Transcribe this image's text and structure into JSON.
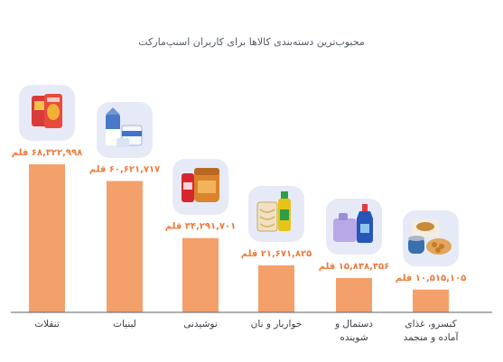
{
  "chart_data": {
    "type": "bar",
    "title": "محبوب‌ترین دسته‌بندی کالاها برای کاربران اسنپ‌مارکت",
    "unit": "قلم",
    "categories": [
      "تنقلات",
      "لبنیات",
      "نوشیدنی",
      "خواربار و نان",
      "دستمال و شوینده",
      "کنسرو، غذای آماده و منجمد"
    ],
    "category_lines": [
      [
        "تنقلات"
      ],
      [
        "لبنیات"
      ],
      [
        "نوشیدنی"
      ],
      [
        "خواربار و نان"
      ],
      [
        "دستمال و",
        "شوینده"
      ],
      [
        "کنسرو، غذای",
        "آماده و منجمد"
      ]
    ],
    "values": [
      68322998,
      60621717,
      34291701,
      21671825,
      15838356,
      10515105
    ],
    "value_labels": [
      "۶۸,۳۲۲,۹۹۸ قلم",
      "۶۰,۶۲۱,۷۱۷ قلم",
      "۳۴,۲۹۱,۷۰۱ قلم",
      "۲۱,۶۷۱,۸۲۵ قلم",
      "۱۵,۸۳۸,۳۵۶ قلم",
      "۱۰,۵۱۵,۱۰۵ قلم"
    ],
    "icons": [
      "chips-icon",
      "milk-icon",
      "beverage-icon",
      "pasta-oil-icon",
      "detergent-icon",
      "canned-food-icon"
    ],
    "ylim": [
      0,
      100000000
    ],
    "grid": false,
    "legend": "none"
  },
  "colors": {
    "bar": "#f4a06b",
    "label": "#ee7a3c",
    "axis": "#5a5f69",
    "category_text": "#3b3f47",
    "thumb_bg": "#e6eaf6"
  }
}
